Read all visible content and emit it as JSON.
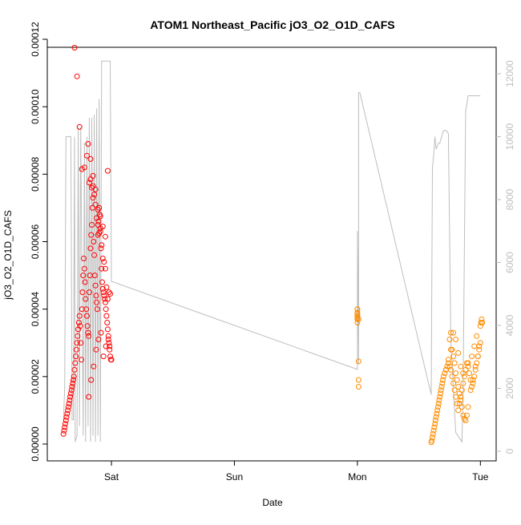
{
  "chart_data": {
    "type": "scatter",
    "title": "ATOM1 Northeast_Pacific jO3_O2_O1D_CAFS",
    "xlabel": "Date",
    "ylabel": "jO3_O2_O1D_CAFS",
    "x_unit": "days",
    "x_tick_labels": [
      {
        "x": 0,
        "label": "Sat"
      },
      {
        "x": 1,
        "label": "Sun"
      },
      {
        "x": 2,
        "label": "Mon"
      },
      {
        "x": 3,
        "label": "Tue"
      }
    ],
    "xlim": [
      -0.45,
      3.05
    ],
    "ylim": [
      0,
      0.00012
    ],
    "y_ticks": [
      0,
      2e-05,
      4e-05,
      6e-05,
      8e-05,
      0.0001,
      0.00012
    ],
    "y_tick_labels": [
      "0.00000",
      "0.00002",
      "0.00004",
      "0.00006",
      "0.00008",
      "0.00010",
      "0.00012"
    ],
    "y2_range": [
      -200,
      12600
    ],
    "y2_ticks": [
      0,
      2000,
      4000,
      6000,
      8000,
      10000,
      12000
    ],
    "y2_tick_labels": [
      "0",
      "2000",
      "4000",
      "6000",
      "8000",
      "10000",
      "12000"
    ],
    "grid": false,
    "legend": "none",
    "series": [
      {
        "color": "#ff0000",
        "marker": "open-circle",
        "axis": "left",
        "x": [
          -0.39,
          -0.385,
          -0.38,
          -0.375,
          -0.37,
          -0.365,
          -0.36,
          -0.355,
          -0.35,
          -0.345,
          -0.34,
          -0.335,
          -0.33,
          -0.325,
          -0.32,
          -0.315,
          -0.31,
          -0.305,
          -0.3,
          -0.295,
          -0.29,
          -0.285,
          -0.28,
          -0.275,
          -0.27,
          -0.265,
          -0.26,
          -0.255,
          -0.25,
          -0.245,
          -0.24,
          -0.235,
          -0.23,
          -0.225,
          -0.22,
          -0.215,
          -0.21,
          -0.205,
          -0.2,
          -0.195,
          -0.19,
          -0.185,
          -0.18,
          -0.175,
          -0.17,
          -0.165,
          -0.16,
          -0.155,
          -0.15,
          -0.145,
          -0.14,
          -0.135,
          -0.13,
          -0.125,
          -0.12,
          -0.115,
          -0.11,
          -0.105,
          -0.1,
          -0.095,
          -0.09,
          -0.085,
          -0.08,
          -0.075,
          -0.07,
          -0.065,
          -0.06,
          -0.055,
          -0.05,
          -0.045,
          -0.04,
          -0.035,
          -0.03,
          -0.025,
          -0.02,
          -0.015,
          -0.01,
          -0.005,
          0.0,
          -0.18,
          -0.17,
          -0.16,
          -0.15,
          -0.14,
          -0.13,
          -0.12,
          -0.11,
          -0.1,
          -0.09,
          -0.08,
          -0.07,
          -0.06,
          -0.05,
          -0.04,
          -0.03,
          -0.02,
          -0.01,
          -0.2,
          -0.22,
          -0.24,
          -0.26,
          -0.28,
          -0.3,
          -0.19,
          -0.17,
          -0.15,
          -0.13,
          -0.11,
          -0.09,
          -0.07,
          -0.05,
          -0.03,
          -0.185,
          -0.165,
          -0.145,
          -0.125,
          -0.105,
          -0.085,
          -0.065,
          -0.045,
          -0.025,
          -0.015
        ],
        "y": [
          3e-06,
          4e-06,
          5e-06,
          6e-06,
          7e-06,
          8e-06,
          9e-06,
          1e-05,
          1.1e-05,
          1.2e-05,
          1.3e-05,
          1.4e-05,
          1.5e-05,
          1.6e-05,
          1.7e-05,
          1.8e-05,
          1.9e-05,
          2e-05,
          2.2e-05,
          2.4e-05,
          2.6e-05,
          2.8e-05,
          3e-05,
          3.2e-05,
          3.4e-05,
          3.6e-05,
          3.8e-05,
          3.5e-05,
          3e-05,
          2.5e-05,
          4e-05,
          4.5e-05,
          5e-05,
          5.5e-05,
          5.2e-05,
          4.8e-05,
          4.3e-05,
          4e-05,
          3.8e-05,
          3.5e-05,
          3.3e-05,
          3.2e-05,
          4.5e-05,
          5e-05,
          5.8e-05,
          6.2e-05,
          6.5e-05,
          7e-05,
          7.3e-05,
          6e-05,
          5.6e-05,
          5e-05,
          4.7e-05,
          4.4e-05,
          4.2e-05,
          4e-05,
          6.2e-05,
          6.6e-05,
          7e-05,
          6.8e-05,
          6.4e-05,
          5.8e-05,
          5.2e-05,
          4.8e-05,
          4.6e-05,
          4.5e-05,
          4.4e-05,
          4.3e-05,
          4.2e-05,
          4e-05,
          3.8e-05,
          3.6e-05,
          3.4e-05,
          3.2e-05,
          3e-05,
          2.8e-05,
          2.6e-05,
          2.5e-05,
          2.5e-05,
          7.75e-05,
          7.85e-05,
          7.6e-05,
          7.65e-05,
          7.4e-05,
          7.1e-05,
          6.7e-05,
          6.5e-05,
          6.25e-05,
          6.3e-05,
          5.9e-05,
          5.5e-05,
          5.4e-05,
          5.2e-05,
          4.65e-05,
          4.3e-05,
          4.5e-05,
          4.45e-05,
          8.55e-05,
          8.2e-05,
          8.15e-05,
          9.4e-05,
          0.000109,
          0.0001175,
          8.9e-05,
          8.45e-05,
          7.95e-05,
          7.55e-05,
          6.95e-05,
          6.75e-05,
          6.45e-05,
          6.15e-05,
          8.1e-05,
          1.4e-05,
          1.9e-05,
          2.3e-05,
          2.8e-05,
          3.1e-05,
          3.3e-05,
          2.6e-05,
          2.9e-05,
          3.1e-05,
          2.9e-05
        ]
      },
      {
        "color": "#ff8c00",
        "marker": "open-circle",
        "axis": "left",
        "x": [
          2.0,
          2.0,
          2.0,
          2.0,
          2.0,
          2.0,
          2.0,
          2.0,
          2.01,
          2.01,
          2.01,
          2.01,
          2.6,
          2.605,
          2.61,
          2.615,
          2.62,
          2.625,
          2.63,
          2.635,
          2.64,
          2.645,
          2.65,
          2.655,
          2.66,
          2.665,
          2.67,
          2.675,
          2.68,
          2.685,
          2.69,
          2.695,
          2.7,
          2.71,
          2.72,
          2.73,
          2.74,
          2.75,
          2.76,
          2.77,
          2.78,
          2.79,
          2.8,
          2.81,
          2.82,
          2.83,
          2.84,
          2.85,
          2.86,
          2.87,
          2.88,
          2.89,
          2.9,
          2.91,
          2.92,
          2.93,
          2.94,
          2.95,
          2.96,
          2.97,
          2.98,
          2.99,
          3.0,
          3.005,
          3.01,
          3.015,
          2.75,
          2.76,
          2.77,
          2.78,
          2.79,
          2.8,
          2.81,
          2.82,
          2.83,
          2.84,
          2.85,
          2.86,
          2.87,
          2.88,
          2.89,
          2.9,
          2.92,
          2.94,
          2.96,
          2.98,
          2.99,
          3.0,
          2.72,
          2.74,
          2.76,
          2.78,
          2.8,
          2.82,
          2.84,
          2.86,
          2.88,
          2.9,
          2.93,
          2.95,
          2.97
        ],
        "y": [
          4e-05,
          3.85e-05,
          3.8e-05,
          3.7e-05,
          3.6e-05,
          3.75e-05,
          3.9e-05,
          4e-05,
          2.45e-05,
          1.9e-05,
          1.7e-05,
          3.7e-05,
          5e-07,
          1e-06,
          2e-06,
          3e-06,
          4e-06,
          5e-06,
          6e-06,
          7e-06,
          8e-06,
          9e-06,
          1e-05,
          1.1e-05,
          1.2e-05,
          1.3e-05,
          1.4e-05,
          1.5e-05,
          1.6e-05,
          1.7e-05,
          1.8e-05,
          1.9e-05,
          2e-05,
          2.1e-05,
          2.2e-05,
          2.3e-05,
          2.4e-05,
          2.3e-05,
          2.2e-05,
          2e-05,
          1.8e-05,
          1.6e-05,
          1.4e-05,
          1.2e-05,
          1e-05,
          1.2e-05,
          1.4e-05,
          1.6e-05,
          1.8e-05,
          2e-05,
          2.2e-05,
          2.4e-05,
          2.3e-05,
          2.1e-05,
          1.9e-05,
          1.7e-05,
          1.8e-05,
          2e-05,
          2.2e-05,
          2.4e-05,
          2.6e-05,
          2.8e-05,
          3.5e-05,
          3.6e-05,
          3.7e-05,
          3.6e-05,
          3.1e-05,
          3.3e-05,
          2.8e-05,
          2.6e-05,
          2.4e-05,
          2.1e-05,
          1.9e-05,
          1.7e-05,
          1.5e-05,
          1.3e-05,
          1.1e-05,
          8.5e-06,
          7.5e-06,
          7e-06,
          8.5e-06,
          1.1e-05,
          1.6e-05,
          1.9e-05,
          2.3e-05,
          2.6e-05,
          2.9e-05,
          3e-05,
          2.2e-05,
          2.5e-05,
          2.8e-05,
          3.3e-05,
          3.1e-05,
          2.7e-05,
          2.3e-05,
          2.1e-05,
          2.2e-05,
          2.4e-05,
          2.6e-05,
          2.9e-05,
          3.2e-05
        ]
      },
      {
        "color": "#bebebe",
        "marker": "line",
        "axis": "right",
        "x": [
          -0.39,
          -0.38,
          -0.37,
          -0.35,
          -0.33,
          -0.32,
          -0.31,
          -0.3,
          -0.295,
          -0.28,
          -0.27,
          -0.26,
          -0.25,
          -0.23,
          -0.22,
          -0.21,
          -0.2,
          -0.19,
          -0.18,
          -0.17,
          -0.16,
          -0.15,
          -0.14,
          -0.13,
          -0.12,
          -0.11,
          -0.1,
          -0.09,
          -0.08,
          -0.07,
          -0.06,
          -0.05,
          -0.04,
          -0.035,
          -0.03,
          -0.02,
          -0.01,
          0.0,
          2.0,
          2.0,
          2.01,
          2.01,
          2.02,
          2.6,
          2.61,
          2.62,
          2.63,
          2.64,
          2.66,
          2.67,
          2.7,
          2.72,
          2.74,
          2.76,
          2.8,
          2.85,
          2.86,
          2.88,
          2.9,
          2.92,
          2.95,
          2.97,
          2.98,
          3.0
        ],
        "y": [
          1000,
          2000,
          10000,
          10000,
          10000,
          1000,
          1000,
          10000,
          300,
          500,
          10300,
          800,
          10300,
          500,
          9800,
          300,
          10000,
          800,
          10600,
          300,
          10600,
          500,
          10700,
          300,
          10900,
          500,
          11200,
          300,
          12400,
          12400,
          12400,
          12400,
          12400,
          12400,
          12400,
          12400,
          12400,
          5400,
          2600,
          7000,
          2800,
          11400,
          11400,
          1800,
          9000,
          9400,
          10000,
          9600,
          9800,
          9800,
          10200,
          10200,
          10100,
          3500,
          600,
          300,
          2000,
          10800,
          11300,
          11300,
          11300,
          11300,
          11300,
          11300
        ]
      }
    ]
  }
}
